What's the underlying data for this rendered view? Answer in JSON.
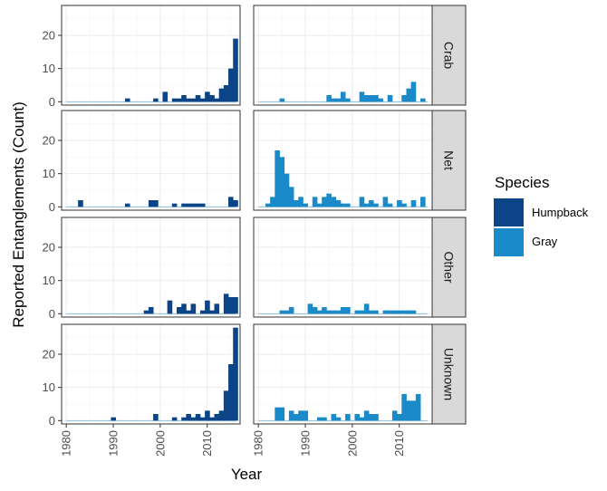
{
  "chart_data": {
    "type": "bar",
    "xlabel": "Year",
    "ylabel": "Reported Entanglements (Count)",
    "x_ticks": [
      1980,
      1990,
      2000,
      2010
    ],
    "y_ticks": [
      0,
      10,
      20
    ],
    "xlim": [
      1979,
      2017
    ],
    "ylim": [
      -1,
      29
    ],
    "facet_rows": [
      "Crab",
      "Net",
      "Other",
      "Unknown"
    ],
    "facet_cols": [
      "Humpback",
      "Gray"
    ],
    "legend": {
      "title": "Species",
      "position": "right",
      "entries": [
        {
          "name": "Humpback",
          "color": "#0b4487"
        },
        {
          "name": "Gray",
          "color": "#1b8ac9"
        }
      ]
    },
    "panels": [
      {
        "row": "Crab",
        "species": "Humpback",
        "bars": [
          [
            1993,
            1
          ],
          [
            1999,
            1
          ],
          [
            2001,
            3
          ],
          [
            2003,
            1
          ],
          [
            2004,
            1
          ],
          [
            2005,
            2
          ],
          [
            2006,
            1
          ],
          [
            2007,
            1
          ],
          [
            2008,
            2
          ],
          [
            2009,
            1
          ],
          [
            2010,
            3
          ],
          [
            2011,
            2
          ],
          [
            2012,
            1
          ],
          [
            2013,
            4
          ],
          [
            2014,
            5
          ],
          [
            2015,
            10
          ],
          [
            2016,
            19
          ]
        ]
      },
      {
        "row": "Crab",
        "species": "Gray",
        "bars": [
          [
            1985,
            1
          ],
          [
            1995,
            2
          ],
          [
            1996,
            1
          ],
          [
            1997,
            1
          ],
          [
            1998,
            3
          ],
          [
            1999,
            1
          ],
          [
            2002,
            3
          ],
          [
            2003,
            2
          ],
          [
            2004,
            2
          ],
          [
            2005,
            2
          ],
          [
            2006,
            1
          ],
          [
            2008,
            2
          ],
          [
            2011,
            2
          ],
          [
            2012,
            4
          ],
          [
            2013,
            6
          ],
          [
            2015,
            1
          ]
        ]
      },
      {
        "row": "Net",
        "species": "Humpback",
        "bars": [
          [
            1983,
            2
          ],
          [
            1993,
            1
          ],
          [
            1998,
            2
          ],
          [
            1999,
            2
          ],
          [
            2003,
            1
          ],
          [
            2005,
            1
          ],
          [
            2006,
            1
          ],
          [
            2007,
            1
          ],
          [
            2008,
            1
          ],
          [
            2009,
            1
          ],
          [
            2015,
            3
          ],
          [
            2016,
            2
          ]
        ]
      },
      {
        "row": "Net",
        "species": "Gray",
        "bars": [
          [
            1982,
            1
          ],
          [
            1983,
            3
          ],
          [
            1984,
            17
          ],
          [
            1985,
            15
          ],
          [
            1986,
            10
          ],
          [
            1987,
            6
          ],
          [
            1988,
            2
          ],
          [
            1989,
            3
          ],
          [
            1990,
            1
          ],
          [
            1992,
            3
          ],
          [
            1993,
            1
          ],
          [
            1994,
            3
          ],
          [
            1995,
            4
          ],
          [
            1996,
            3
          ],
          [
            1997,
            2
          ],
          [
            1998,
            1
          ],
          [
            1999,
            1
          ],
          [
            2002,
            3
          ],
          [
            2003,
            1
          ],
          [
            2004,
            2
          ],
          [
            2005,
            1
          ],
          [
            2007,
            3
          ],
          [
            2008,
            1
          ],
          [
            2010,
            2
          ],
          [
            2011,
            1
          ],
          [
            2013,
            2
          ],
          [
            2015,
            3
          ]
        ]
      },
      {
        "row": "Other",
        "species": "Humpback",
        "bars": [
          [
            1997,
            1
          ],
          [
            1998,
            2
          ],
          [
            2002,
            4
          ],
          [
            2004,
            2
          ],
          [
            2005,
            3
          ],
          [
            2006,
            1
          ],
          [
            2007,
            3
          ],
          [
            2009,
            1
          ],
          [
            2010,
            4
          ],
          [
            2011,
            1
          ],
          [
            2012,
            3
          ],
          [
            2014,
            6
          ],
          [
            2015,
            5
          ],
          [
            2016,
            5
          ]
        ]
      },
      {
        "row": "Other",
        "species": "Gray",
        "bars": [
          [
            1985,
            1
          ],
          [
            1986,
            1
          ],
          [
            1987,
            2
          ],
          [
            1991,
            3
          ],
          [
            1992,
            2
          ],
          [
            1993,
            1
          ],
          [
            1994,
            2
          ],
          [
            1995,
            1
          ],
          [
            1996,
            1
          ],
          [
            1997,
            1
          ],
          [
            1998,
            2
          ],
          [
            1999,
            2
          ],
          [
            2001,
            1
          ],
          [
            2002,
            1
          ],
          [
            2003,
            3
          ],
          [
            2004,
            1
          ],
          [
            2005,
            1
          ],
          [
            2007,
            1
          ],
          [
            2008,
            1
          ],
          [
            2009,
            1
          ],
          [
            2010,
            1
          ],
          [
            2011,
            1
          ],
          [
            2012,
            1
          ],
          [
            2013,
            1
          ]
        ]
      },
      {
        "row": "Unknown",
        "species": "Humpback",
        "bars": [
          [
            1990,
            1
          ],
          [
            1999,
            2
          ],
          [
            2003,
            1
          ],
          [
            2005,
            1
          ],
          [
            2006,
            2
          ],
          [
            2007,
            1
          ],
          [
            2008,
            2
          ],
          [
            2009,
            1
          ],
          [
            2010,
            3
          ],
          [
            2011,
            1
          ],
          [
            2012,
            2
          ],
          [
            2013,
            3
          ],
          [
            2014,
            9
          ],
          [
            2015,
            17
          ],
          [
            2016,
            28
          ]
        ]
      },
      {
        "row": "Unknown",
        "species": "Gray",
        "bars": [
          [
            1984,
            4
          ],
          [
            1985,
            4
          ],
          [
            1987,
            3
          ],
          [
            1988,
            2
          ],
          [
            1989,
            3
          ],
          [
            1990,
            3
          ],
          [
            1993,
            1
          ],
          [
            1994,
            1
          ],
          [
            1996,
            2
          ],
          [
            1997,
            1
          ],
          [
            1999,
            2
          ],
          [
            2001,
            2
          ],
          [
            2002,
            1
          ],
          [
            2003,
            3
          ],
          [
            2004,
            2
          ],
          [
            2005,
            2
          ],
          [
            2009,
            3
          ],
          [
            2010,
            2
          ],
          [
            2011,
            8
          ],
          [
            2012,
            6
          ],
          [
            2013,
            6
          ],
          [
            2014,
            8
          ]
        ]
      }
    ]
  }
}
